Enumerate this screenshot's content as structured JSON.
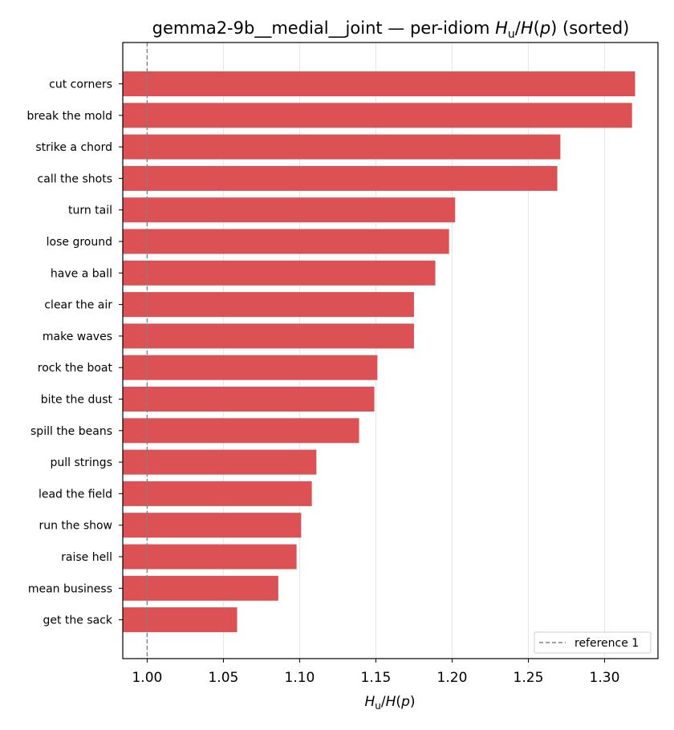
{
  "chart_data": {
    "type": "bar",
    "orientation": "horizontal",
    "title_parts": {
      "prefix": "gemma2-9b__medial__joint — per-idiom ",
      "h": "H",
      "sub": "u",
      "mid": "/",
      "h2": "H",
      "paren_open": "(",
      "p": "p",
      "paren_close": ")",
      "suffix": " (sorted)"
    },
    "xlabel_parts": {
      "h": "H",
      "sub": "u",
      "mid": "/",
      "h2": "H",
      "paren_open": "(",
      "p": "p",
      "paren_close": ")"
    },
    "categories": [
      "cut corners",
      "break the mold",
      "strike a chord",
      "call the shots",
      "turn tail",
      "lose ground",
      "have a ball",
      "clear the air",
      "make waves",
      "rock the boat",
      "bite the dust",
      "spill the beans",
      "pull strings",
      "lead the field",
      "run the show",
      "raise hell",
      "mean business",
      "get the sack"
    ],
    "values": [
      1.32,
      1.318,
      1.271,
      1.269,
      1.202,
      1.198,
      1.189,
      1.175,
      1.175,
      1.151,
      1.149,
      1.139,
      1.111,
      1.108,
      1.101,
      1.098,
      1.086,
      1.059
    ],
    "xlim": [
      0.984,
      1.335
    ],
    "xticks": [
      1.0,
      1.05,
      1.1,
      1.15,
      1.2,
      1.25,
      1.3
    ],
    "xtick_labels": [
      "1.00",
      "1.05",
      "1.10",
      "1.15",
      "1.20",
      "1.25",
      "1.30"
    ],
    "reference_line": {
      "x": 1.0,
      "label": "reference 1"
    },
    "bar_color": "#dc5254",
    "grid_x": true,
    "legend_position": "lower-right"
  }
}
